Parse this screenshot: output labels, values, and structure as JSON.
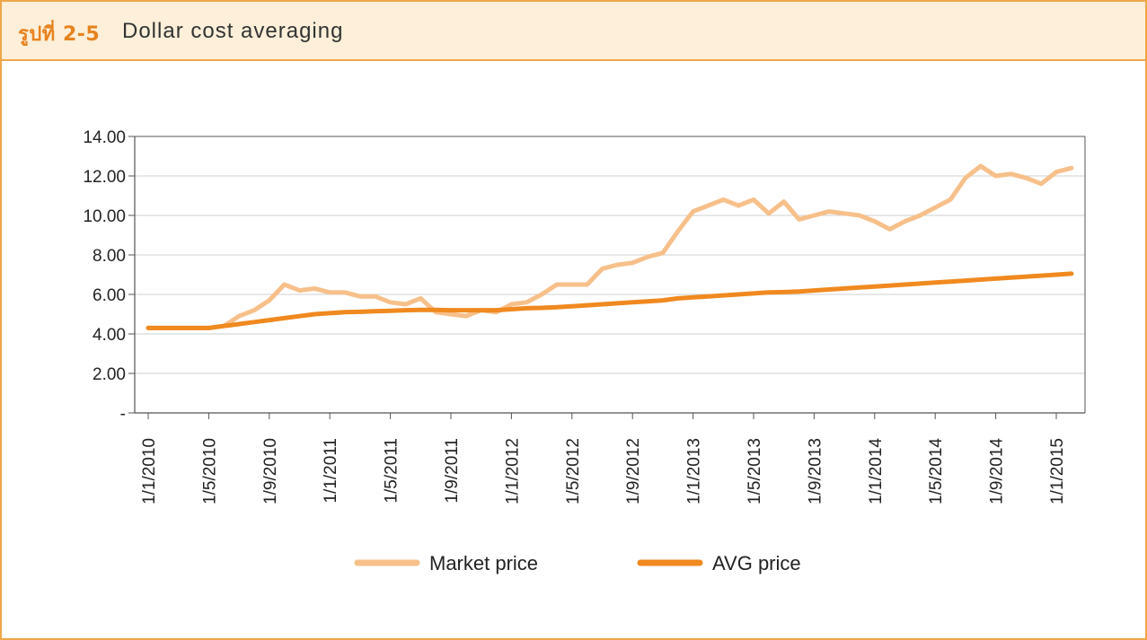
{
  "header": {
    "figure_label": "รูปที่ 2-5",
    "title": "Dollar cost averaging"
  },
  "colors": {
    "border": "#f0a64a",
    "header_bg": "#fdefd9",
    "label": "#e8821f",
    "market_line": "#f7c08a",
    "avg_line": "#f0891f"
  },
  "chart_data": {
    "type": "line",
    "title": "",
    "xlabel": "",
    "ylabel": "",
    "ylim": [
      0,
      14
    ],
    "y_ticks": [
      {
        "value": 0,
        "label": "-"
      },
      {
        "value": 2,
        "label": "2.00"
      },
      {
        "value": 4,
        "label": "4.00"
      },
      {
        "value": 6,
        "label": "6.00"
      },
      {
        "value": 8,
        "label": "8.00"
      },
      {
        "value": 10,
        "label": "10.00"
      },
      {
        "value": 12,
        "label": "12.00"
      },
      {
        "value": 14,
        "label": "14.00"
      }
    ],
    "x_start": "1/1/2010",
    "x_tick_labels": [
      "1/1/2010",
      "1/5/2010",
      "1/9/2010",
      "1/1/2011",
      "1/5/2011",
      "1/9/2011",
      "1/1/2012",
      "1/5/2012",
      "1/9/2012",
      "1/1/2013",
      "1/5/2013",
      "1/9/2013",
      "1/1/2014",
      "1/5/2014",
      "1/9/2014",
      "1/1/2015"
    ],
    "grid": "horizontal",
    "legend_position": "bottom",
    "series": [
      {
        "name": "Market price",
        "color": "#f7c08a",
        "values": [
          4.3,
          4.3,
          4.3,
          4.3,
          4.3,
          4.4,
          4.9,
          5.2,
          5.7,
          6.5,
          6.2,
          6.3,
          6.1,
          6.1,
          5.9,
          5.9,
          5.6,
          5.5,
          5.8,
          5.1,
          5.0,
          4.9,
          5.2,
          5.1,
          5.5,
          5.6,
          6.0,
          6.5,
          6.5,
          6.5,
          7.3,
          7.5,
          7.6,
          7.9,
          8.1,
          9.2,
          10.2,
          10.5,
          10.8,
          10.5,
          10.8,
          10.1,
          10.7,
          9.8,
          10.0,
          10.2,
          10.1,
          10.0,
          9.7,
          9.3,
          9.7,
          10.0,
          10.4,
          10.8,
          11.9,
          12.5,
          12.0,
          12.1,
          11.9,
          11.6,
          12.2,
          12.4
        ]
      },
      {
        "name": "AVG price",
        "color": "#f0891f",
        "values": [
          4.3,
          4.3,
          4.3,
          4.3,
          4.3,
          4.4,
          4.5,
          4.6,
          4.7,
          4.8,
          4.9,
          5.0,
          5.05,
          5.1,
          5.12,
          5.15,
          5.17,
          5.2,
          5.22,
          5.22,
          5.2,
          5.2,
          5.2,
          5.2,
          5.25,
          5.3,
          5.32,
          5.35,
          5.4,
          5.45,
          5.5,
          5.55,
          5.6,
          5.65,
          5.7,
          5.8,
          5.85,
          5.9,
          5.95,
          6.0,
          6.05,
          6.1,
          6.12,
          6.15,
          6.2,
          6.25,
          6.3,
          6.35,
          6.4,
          6.45,
          6.5,
          6.55,
          6.6,
          6.65,
          6.7,
          6.75,
          6.8,
          6.85,
          6.9,
          6.95,
          7.0,
          7.05
        ]
      }
    ]
  }
}
